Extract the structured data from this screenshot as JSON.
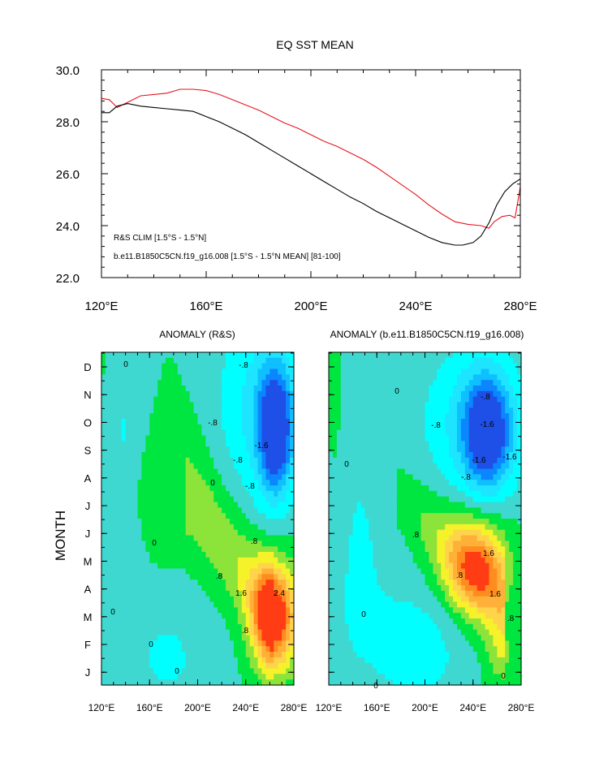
{
  "colors": {
    "red_line": "#e8141e",
    "black_line": "#000000",
    "levels": [
      "#00ffff",
      "#1ee5ff",
      "#0fbfff",
      "#0b86ff",
      "#1e4fe6",
      "#3fd8d0",
      "#22e8b0",
      "#00e640",
      "#8ce33a",
      "#f5f22a",
      "#ffd34a",
      "#ffb038",
      "#ff8c1e",
      "#ff3c14"
    ]
  },
  "chart_data": [
    {
      "type": "line",
      "title": "EQ SST MEAN",
      "ylim": [
        22.0,
        30.0
      ],
      "xlim": [
        120,
        280
      ],
      "yticks": [
        "30.0",
        "28.0",
        "26.0",
        "24.0",
        "22.0"
      ],
      "xticks": [
        "120°E",
        "160°E",
        "200°E",
        "240°E",
        "280°E"
      ],
      "grid": false,
      "legend_position": "bottom-left",
      "series": [
        {
          "name": "R&S CLIM [1.5°S - 1.5°N]",
          "color": "#e8141e",
          "x": [
            120,
            123,
            126,
            130,
            135,
            140,
            145,
            150,
            155,
            160,
            165,
            170,
            175,
            180,
            185,
            190,
            195,
            200,
            205,
            210,
            215,
            220,
            225,
            230,
            235,
            240,
            245,
            250,
            255,
            260,
            265,
            268,
            270,
            273,
            276,
            278,
            280
          ],
          "y": [
            28.9,
            28.85,
            28.55,
            28.75,
            29.0,
            29.05,
            29.1,
            29.25,
            29.25,
            29.2,
            29.05,
            28.85,
            28.65,
            28.45,
            28.2,
            27.95,
            27.75,
            27.5,
            27.25,
            27.05,
            26.8,
            26.55,
            26.25,
            25.9,
            25.55,
            25.2,
            24.8,
            24.45,
            24.15,
            24.05,
            24.0,
            23.9,
            24.15,
            24.35,
            24.4,
            24.3,
            25.5
          ]
        },
        {
          "name": "b.e11.B1850C5CN.f19_g16.008 [1.5°S - 1.5°N MEAN] [81-100]",
          "color": "#000000",
          "x": [
            120,
            123,
            126,
            130,
            135,
            140,
            145,
            150,
            155,
            160,
            165,
            170,
            175,
            180,
            185,
            190,
            195,
            200,
            205,
            210,
            215,
            220,
            225,
            230,
            235,
            240,
            245,
            250,
            255,
            258,
            262,
            265,
            268,
            271,
            274,
            277,
            280
          ],
          "y": [
            28.35,
            28.35,
            28.6,
            28.7,
            28.6,
            28.55,
            28.5,
            28.45,
            28.4,
            28.2,
            28.0,
            27.75,
            27.5,
            27.2,
            26.9,
            26.6,
            26.3,
            26.0,
            25.7,
            25.4,
            25.1,
            24.85,
            24.55,
            24.3,
            24.05,
            23.8,
            23.55,
            23.35,
            23.25,
            23.25,
            23.35,
            23.6,
            24.1,
            24.8,
            25.3,
            25.6,
            25.8
          ]
        }
      ]
    },
    {
      "type": "heatmap",
      "title": "ANOMALY (R&S)",
      "ylabel": "MONTH",
      "yticks": [
        "D",
        "N",
        "O",
        "S",
        "A",
        "J",
        "J",
        "M",
        "A",
        "M",
        "F",
        "J"
      ],
      "xticks": [
        "120°E",
        "160°E",
        "200°E",
        "240°E",
        "280°E"
      ],
      "xlim": [
        120,
        280
      ],
      "contour_labels": [
        "-.8",
        "-.8",
        "-.8",
        "-1.6",
        "-.8",
        "0",
        "0",
        "0",
        ".8",
        ".8",
        "1.6",
        "2.4",
        ".8",
        "0",
        "0",
        "0"
      ],
      "features": [
        {
          "sign": "negative",
          "center_lon": 265,
          "center_month": 8.7,
          "peak": -2.4
        },
        {
          "sign": "positive",
          "center_lon": 263,
          "center_month": 2.0,
          "peak": 2.8
        }
      ]
    },
    {
      "type": "heatmap",
      "title": "ANOMALY (b.e11.B1850C5CN.f19_g16.008)",
      "yticks": [
        "D",
        "N",
        "O",
        "S",
        "A",
        "J",
        "J",
        "M",
        "A",
        "M",
        "F",
        "J"
      ],
      "xticks": [
        "120°E",
        "160°E",
        "200°E",
        "240°E",
        "280°E"
      ],
      "xlim": [
        120,
        280
      ],
      "contour_labels": [
        "-.8",
        "-.8",
        "-1.6",
        "-1.6",
        "-1.6",
        "-.8",
        "0",
        "0",
        ".8",
        ".8",
        "1.6",
        "1.6",
        ".8",
        "0",
        "0",
        "0"
      ],
      "features": [
        {
          "sign": "negative",
          "center_lon": 255,
          "center_month": 8.6,
          "peak": -2.2
        },
        {
          "sign": "positive",
          "center_lon": 240,
          "center_month": 4.0,
          "peak": 2.0
        }
      ]
    }
  ]
}
